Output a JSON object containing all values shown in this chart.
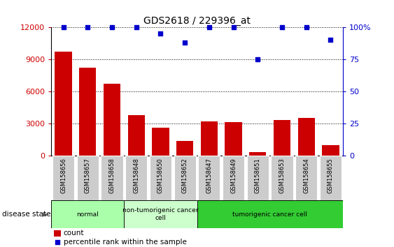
{
  "title": "GDS2618 / 229396_at",
  "samples": [
    "GSM158656",
    "GSM158657",
    "GSM158658",
    "GSM158648",
    "GSM158650",
    "GSM158652",
    "GSM158647",
    "GSM158649",
    "GSM158651",
    "GSM158653",
    "GSM158654",
    "GSM158655"
  ],
  "counts": [
    9700,
    8200,
    6700,
    3800,
    2600,
    1400,
    3200,
    3100,
    350,
    3300,
    3500,
    950
  ],
  "percentiles": [
    100,
    100,
    100,
    100,
    95,
    88,
    100,
    100,
    75,
    100,
    100,
    90
  ],
  "ylim_left": [
    0,
    12000
  ],
  "ylim_right": [
    0,
    100
  ],
  "yticks_left": [
    0,
    3000,
    6000,
    9000,
    12000
  ],
  "yticks_right": [
    0,
    25,
    50,
    75,
    100
  ],
  "bar_color": "#cc0000",
  "scatter_color": "#0000cc",
  "tick_bg_color": "#cccccc",
  "groups": [
    {
      "label": "normal",
      "start": 0,
      "end": 2,
      "color": "#aaffaa"
    },
    {
      "label": "non-tumorigenic cancer\ncell",
      "start": 3,
      "end": 5,
      "color": "#ccffcc"
    },
    {
      "label": "tumorigenic cancer cell",
      "start": 6,
      "end": 11,
      "color": "#33cc33"
    }
  ],
  "legend_count_color": "#cc0000",
  "legend_pct_color": "#0000cc",
  "disease_state_label": "disease state",
  "grid_color": "#000000"
}
